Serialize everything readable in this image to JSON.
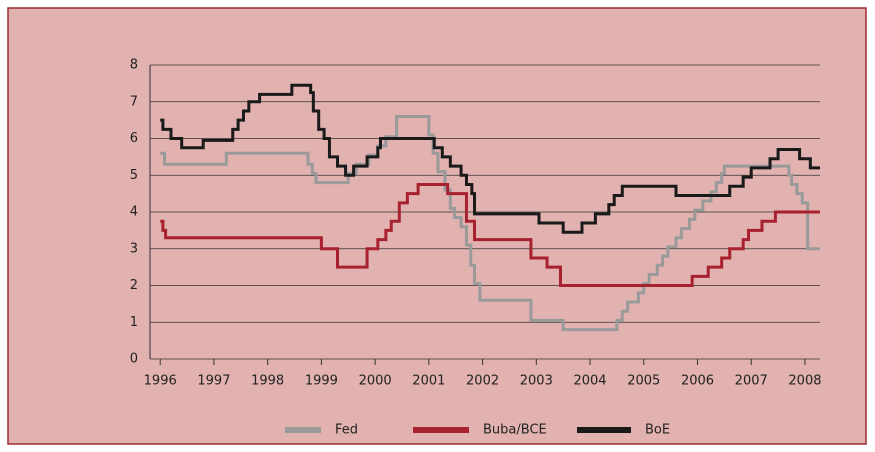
{
  "chart_data": {
    "type": "line",
    "step": true,
    "xlim": [
      1995.81,
      2008.28
    ],
    "xticks": [
      1996,
      1997,
      1998,
      1999,
      2000,
      2001,
      2002,
      2003,
      2004,
      2005,
      2006,
      2007,
      2008
    ],
    "ylim": [
      0,
      8
    ],
    "yticks": [
      0,
      1,
      2,
      3,
      4,
      5,
      6,
      7,
      8
    ],
    "grid": true,
    "legend": "bottom",
    "series": [
      {
        "name": "Fed",
        "color": "#9a9a9a",
        "x": [
          1996.0,
          1996.08,
          1997.23,
          1998.75,
          1998.83,
          1998.9,
          1999.5,
          1999.65,
          1999.88,
          2000.05,
          2000.2,
          2000.4,
          2001.0,
          2001.08,
          2001.17,
          2001.3,
          2001.4,
          2001.48,
          2001.6,
          2001.7,
          2001.78,
          2001.85,
          2001.95,
          2002.9,
          2003.5,
          2004.5,
          2004.6,
          2004.7,
          2004.9,
          2005.0,
          2005.1,
          2005.25,
          2005.35,
          2005.45,
          2005.6,
          2005.7,
          2005.85,
          2005.95,
          2006.1,
          2006.25,
          2006.35,
          2006.45,
          2006.5,
          2007.7,
          2007.75,
          2007.85,
          2007.95,
          2008.05,
          2008.28
        ],
        "values": [
          5.6,
          5.3,
          5.6,
          5.3,
          5.05,
          4.8,
          5.05,
          5.3,
          5.55,
          5.8,
          6.05,
          6.6,
          6.1,
          5.6,
          5.1,
          4.6,
          4.1,
          3.85,
          3.6,
          3.1,
          2.55,
          2.05,
          1.6,
          1.05,
          0.8,
          1.05,
          1.3,
          1.55,
          1.8,
          2.05,
          2.3,
          2.55,
          2.8,
          3.05,
          3.3,
          3.55,
          3.8,
          4.05,
          4.3,
          4.55,
          4.8,
          5.05,
          5.25,
          5.0,
          4.75,
          4.5,
          4.25,
          3.0,
          3.0
        ]
      },
      {
        "name": "Buba/BCE",
        "color": "#a8212e",
        "x": [
          1996.0,
          1996.05,
          1996.1,
          1999.0,
          1999.3,
          1999.85,
          2000.05,
          2000.2,
          2000.3,
          2000.45,
          2000.6,
          2000.8,
          2001.35,
          2001.7,
          2001.85,
          2002.9,
          2003.2,
          2003.45,
          2005.9,
          2006.2,
          2006.45,
          2006.6,
          2006.85,
          2006.95,
          2007.2,
          2007.45,
          2008.28
        ],
        "values": [
          3.75,
          3.5,
          3.3,
          3.0,
          2.5,
          3.0,
          3.25,
          3.5,
          3.75,
          4.25,
          4.5,
          4.75,
          4.5,
          3.75,
          3.25,
          2.75,
          2.5,
          2.0,
          2.25,
          2.5,
          2.75,
          3.0,
          3.25,
          3.5,
          3.75,
          4.0,
          4.0
        ]
      },
      {
        "name": "BoE",
        "color": "#1a1a1a",
        "x": [
          1996.0,
          1996.05,
          1996.2,
          1996.4,
          1996.8,
          1997.35,
          1997.45,
          1997.55,
          1997.65,
          1997.85,
          1998.45,
          1998.8,
          1998.85,
          1998.95,
          1999.05,
          1999.15,
          1999.3,
          1999.45,
          1999.6,
          1999.85,
          2000.05,
          2000.1,
          2001.1,
          2001.25,
          2001.4,
          2001.6,
          2001.7,
          2001.8,
          2001.85,
          2003.05,
          2003.5,
          2003.85,
          2004.1,
          2004.35,
          2004.45,
          2004.6,
          2005.6,
          2006.6,
          2006.85,
          2007.0,
          2007.35,
          2007.5,
          2007.9,
          2008.1,
          2008.28
        ],
        "values": [
          6.5,
          6.25,
          6.0,
          5.75,
          5.95,
          6.25,
          6.5,
          6.75,
          7.0,
          7.2,
          7.45,
          7.25,
          6.75,
          6.25,
          6.0,
          5.5,
          5.25,
          5.0,
          5.25,
          5.5,
          5.75,
          6.0,
          5.75,
          5.5,
          5.25,
          5.0,
          4.75,
          4.5,
          3.95,
          3.7,
          3.45,
          3.7,
          3.95,
          4.2,
          4.45,
          4.7,
          4.45,
          4.7,
          4.95,
          5.2,
          5.45,
          5.7,
          5.45,
          5.2,
          5.2
        ]
      }
    ]
  }
}
